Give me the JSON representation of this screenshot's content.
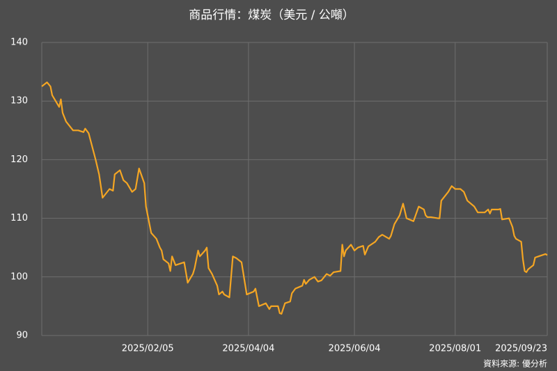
{
  "chart_data": {
    "type": "line",
    "title": "商品行情：煤炭（美元 / 公噸）",
    "source": "資料來源: 優分析",
    "x": [
      "2024/12/06",
      "2024/12/09",
      "2024/12/11",
      "2024/12/12",
      "2024/12/16",
      "2024/12/17",
      "2024/12/18",
      "2024/12/20",
      "2024/12/24",
      "2024/12/27",
      "2024/12/30",
      "2024/12/31",
      "2025/01/02",
      "2025/01/06",
      "2025/01/08",
      "2025/01/10",
      "2025/01/14",
      "2025/01/16",
      "2025/01/17",
      "2025/01/20",
      "2025/01/22",
      "2025/01/24",
      "2025/01/27",
      "2025/01/29",
      "2025/01/31",
      "2025/02/03",
      "2025/02/04",
      "2025/02/07",
      "2025/02/10",
      "2025/02/12",
      "2025/02/13",
      "2025/02/14",
      "2025/02/17",
      "2025/02/18",
      "2025/02/19",
      "2025/02/21",
      "2025/02/24",
      "2025/02/26",
      "2025/02/28",
      "2025/03/03",
      "2025/03/04",
      "2025/03/06",
      "2025/03/07",
      "2025/03/10",
      "2025/03/11",
      "2025/03/12",
      "2025/03/14",
      "2025/03/17",
      "2025/03/18",
      "2025/03/20",
      "2025/03/21",
      "2025/03/24",
      "2025/03/26",
      "2025/03/28",
      "2025/03/31",
      "2025/04/03",
      "2025/04/07",
      "2025/04/08",
      "2025/04/09",
      "2025/04/10",
      "2025/04/14",
      "2025/04/16",
      "2025/04/17",
      "2025/04/21",
      "2025/04/22",
      "2025/04/23",
      "2025/04/25",
      "2025/04/28",
      "2025/04/29",
      "2025/05/01",
      "2025/05/05",
      "2025/05/06",
      "2025/05/07",
      "2025/05/09",
      "2025/05/12",
      "2025/05/14",
      "2025/05/16",
      "2025/05/19",
      "2025/05/21",
      "2025/05/23",
      "2025/05/27",
      "2025/05/28",
      "2025/05/29",
      "2025/05/30",
      "2025/06/02",
      "2025/06/04",
      "2025/06/06",
      "2025/06/09",
      "2025/06/10",
      "2025/06/12",
      "2025/06/16",
      "2025/06/18",
      "2025/06/20",
      "2025/06/24",
      "2025/06/25",
      "2025/06/27",
      "2025/06/30",
      "2025/07/02",
      "2025/07/04",
      "2025/07/08",
      "2025/07/11",
      "2025/07/14",
      "2025/07/15",
      "2025/07/16",
      "2025/07/18",
      "2025/07/22",
      "2025/07/23",
      "2025/07/24",
      "2025/07/28",
      "2025/07/30",
      "2025/08/01",
      "2025/08/04",
      "2025/08/06",
      "2025/08/08",
      "2025/08/12",
      "2025/08/14",
      "2025/08/18",
      "2025/08/20",
      "2025/08/21",
      "2025/08/22",
      "2025/08/26",
      "2025/08/27",
      "2025/08/28",
      "2025/09/01",
      "2025/09/03",
      "2025/09/04",
      "2025/09/05",
      "2025/09/08",
      "2025/09/09",
      "2025/09/10",
      "2025/09/11",
      "2025/09/12",
      "2025/09/15",
      "2025/09/16",
      "2025/09/18",
      "2025/09/22",
      "2025/09/23"
    ],
    "series": [
      {
        "color": "#f5a623",
        "values": [
          132.5,
          133.2,
          132.5,
          131,
          129,
          130.3,
          128,
          126.5,
          125,
          125,
          124.7,
          125.3,
          124.5,
          120,
          117.5,
          113.5,
          115,
          114.7,
          117.5,
          118.2,
          116.5,
          116,
          114.5,
          115,
          118.5,
          116,
          112,
          107.5,
          106.5,
          105,
          104.5,
          103,
          102.3,
          101,
          103.5,
          102,
          102.3,
          102.5,
          99,
          100.5,
          101.5,
          104.5,
          103.5,
          104.5,
          105,
          101.5,
          100.5,
          98.5,
          97,
          97.5,
          97,
          96.5,
          103.5,
          103.2,
          102.5,
          97,
          97.5,
          98,
          96.5,
          95,
          95.5,
          94.5,
          95,
          95,
          93.8,
          93.7,
          95.5,
          95.8,
          97.2,
          98,
          98.5,
          99.5,
          98.8,
          99.5,
          100,
          99.2,
          99.4,
          100.5,
          100.2,
          100.8,
          101,
          105.5,
          103.5,
          104.5,
          105.5,
          104.5,
          105,
          105.3,
          103.8,
          105.2,
          106,
          106.8,
          107.2,
          106.5,
          107,
          109,
          110.5,
          112.5,
          110,
          109.5,
          112,
          111.5,
          110.5,
          110.2,
          110.2,
          110,
          110,
          113,
          114.5,
          115.5,
          115,
          115,
          114.5,
          113,
          112,
          111,
          111,
          111.5,
          110.8,
          111.5,
          111.5,
          111.6,
          109.8,
          110,
          108.5,
          107,
          106.5,
          106,
          103,
          101,
          100.8,
          101.3,
          102,
          103.3,
          103.5,
          103.9,
          103.7
        ]
      }
    ],
    "xlim": [
      "2024/12/06",
      "2025/09/23"
    ],
    "xticks": [
      "2025/02/05",
      "2025/04/04",
      "2025/06/04",
      "2025/08/01",
      "2025/09/23"
    ],
    "ylim": [
      90,
      140
    ],
    "yticks": [
      90,
      100,
      110,
      120,
      130,
      140
    ],
    "grid": true
  }
}
